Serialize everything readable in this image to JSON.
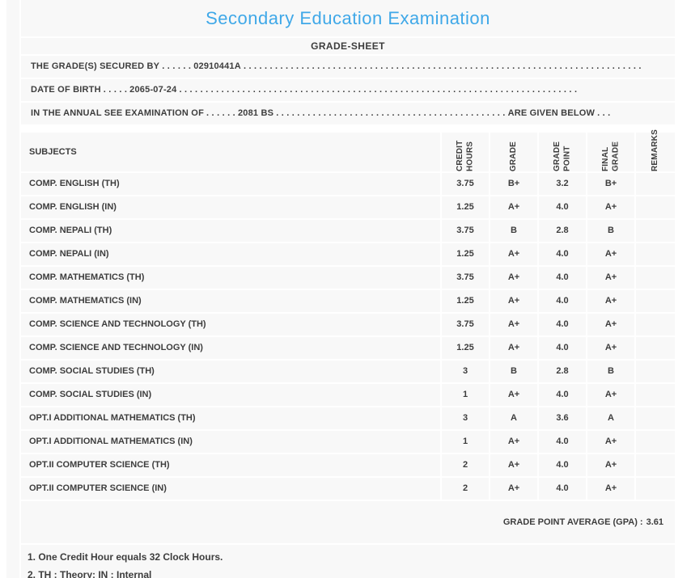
{
  "title": "Secondary Education Examination",
  "subtitle": "GRADE-SHEET",
  "header_lines": [
    {
      "label": "THE GRADE(S) SECURED BY",
      "pre_dots": ". . . . . .",
      "value": "02910441A",
      "post_dots": ". . . . . . . . . . . . . . . . . . . . . . . . . . . . . . . . . . . . . . . . . . . . . . . . . . . . . . . . . . . . . . . . . . . . . . . . . . . .",
      "suffix": "",
      "suffix_dots": ""
    },
    {
      "label": "DATE OF BIRTH",
      "pre_dots": ". . . . .",
      "value": "2065-07-24",
      "post_dots": ". . . . . . . . . . . . . . . . . . . . . . . . . . . . . . . . . . . . . . . . . . . . . . . . . . . . . . . . . . . . . . . . . . . . . . . . . . . .",
      "suffix": "",
      "suffix_dots": ""
    },
    {
      "label": "IN THE ANNUAL SEE EXAMINATION OF",
      "pre_dots": ". . . . . .",
      "value": "2081 BS",
      "post_dots": ". . . . . . . . . . . . . . . . . . . . . . . . . . . . . . . . . . . . . . . . . . . .",
      "suffix": "ARE GIVEN BELOW",
      "suffix_dots": ". . ."
    }
  ],
  "table": {
    "subjects_header": "SUBJECTS",
    "columns": [
      "CREDIT HOURS",
      "GRADE",
      "GRADE POINT",
      "FINAL GRADE",
      "REMARKS"
    ],
    "rows": [
      {
        "subject": "COMP. ENGLISH (TH)",
        "credit_hours": "3.75",
        "grade": "B+",
        "grade_point": "3.2",
        "final_grade": "B+",
        "remarks": ""
      },
      {
        "subject": "COMP. ENGLISH (IN)",
        "credit_hours": "1.25",
        "grade": "A+",
        "grade_point": "4.0",
        "final_grade": "A+",
        "remarks": ""
      },
      {
        "subject": "COMP. NEPALI (TH)",
        "credit_hours": "3.75",
        "grade": "B",
        "grade_point": "2.8",
        "final_grade": "B",
        "remarks": ""
      },
      {
        "subject": "COMP. NEPALI (IN)",
        "credit_hours": "1.25",
        "grade": "A+",
        "grade_point": "4.0",
        "final_grade": "A+",
        "remarks": ""
      },
      {
        "subject": "COMP. MATHEMATICS (TH)",
        "credit_hours": "3.75",
        "grade": "A+",
        "grade_point": "4.0",
        "final_grade": "A+",
        "remarks": ""
      },
      {
        "subject": "COMP. MATHEMATICS (IN)",
        "credit_hours": "1.25",
        "grade": "A+",
        "grade_point": "4.0",
        "final_grade": "A+",
        "remarks": ""
      },
      {
        "subject": "COMP. SCIENCE AND TECHNOLOGY (TH)",
        "credit_hours": "3.75",
        "grade": "A+",
        "grade_point": "4.0",
        "final_grade": "A+",
        "remarks": ""
      },
      {
        "subject": "COMP. SCIENCE AND TECHNOLOGY (IN)",
        "credit_hours": "1.25",
        "grade": "A+",
        "grade_point": "4.0",
        "final_grade": "A+",
        "remarks": ""
      },
      {
        "subject": "COMP. SOCIAL STUDIES (TH)",
        "credit_hours": "3",
        "grade": "B",
        "grade_point": "2.8",
        "final_grade": "B",
        "remarks": ""
      },
      {
        "subject": "COMP. SOCIAL STUDIES (IN)",
        "credit_hours": "1",
        "grade": "A+",
        "grade_point": "4.0",
        "final_grade": "A+",
        "remarks": ""
      },
      {
        "subject": "OPT.I ADDITIONAL MATHEMATICS (TH)",
        "credit_hours": "3",
        "grade": "A",
        "grade_point": "3.6",
        "final_grade": "A",
        "remarks": ""
      },
      {
        "subject": "OPT.I ADDITIONAL MATHEMATICS (IN)",
        "credit_hours": "1",
        "grade": "A+",
        "grade_point": "4.0",
        "final_grade": "A+",
        "remarks": ""
      },
      {
        "subject": "OPT.II COMPUTER SCIENCE (TH)",
        "credit_hours": "2",
        "grade": "A+",
        "grade_point": "4.0",
        "final_grade": "A+",
        "remarks": ""
      },
      {
        "subject": "OPT.II COMPUTER SCIENCE (IN)",
        "credit_hours": "2",
        "grade": "A+",
        "grade_point": "4.0",
        "final_grade": "A+",
        "remarks": ""
      }
    ],
    "gpa_label": "GRADE POINT AVERAGE (GPA) :",
    "gpa_value": "3.61"
  },
  "footnotes": [
    "1. One Credit Hour equals 32 Clock Hours.",
    "2. TH : Theory; IN : Internal"
  ],
  "colors": {
    "title_accent": "#3fa8e8",
    "text": "#3d3d3d",
    "content_bg": "#f8f8f8",
    "separator": "#ffffff",
    "page_bg": "#ffffff"
  }
}
